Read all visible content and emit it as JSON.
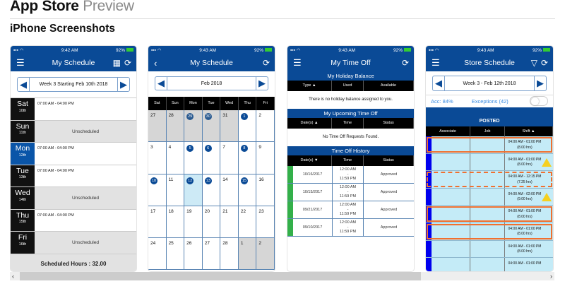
{
  "page": {
    "title": "App Store",
    "title_suffix": "Preview",
    "section": "iPhone Screenshots"
  },
  "colors": {
    "brand": "#0a4a96",
    "approved": "#33b04a",
    "warning": "#f5d020",
    "exception_outline": "#f07030"
  },
  "status_bar": {
    "battery": "92%"
  },
  "phone1": {
    "time": "9:42 AM",
    "title": "My Schedule",
    "week": "Week 3 Starting Feb 10th 2018",
    "icons": [
      "menu-icon",
      "calendar-icon",
      "refresh-icon",
      "arrow-left-icon",
      "arrow-right-icon"
    ],
    "days": [
      {
        "name": "Sat",
        "date": "10th",
        "shift": "07:00 AM - 04:00 PM"
      },
      {
        "name": "Sun",
        "date": "11th",
        "shift": "Unscheduled"
      },
      {
        "name": "Mon",
        "date": "12th",
        "shift": "07:00 AM - 04:00 PM",
        "today": true
      },
      {
        "name": "Tue",
        "date": "13th",
        "shift": "07:00 AM - 04:00 PM"
      },
      {
        "name": "Wed",
        "date": "14th",
        "shift": "Unscheduled"
      },
      {
        "name": "Thu",
        "date": "15th",
        "shift": "07:00 AM - 04:00 PM"
      },
      {
        "name": "Fri",
        "date": "16th",
        "shift": "Unscheduled"
      }
    ],
    "footer_label": "Scheduled Hours :",
    "footer_value": "32.00"
  },
  "phone2": {
    "time": "9:43 AM",
    "title": "My Schedule",
    "month": "Feb 2018",
    "weekdays": [
      "Sat",
      "Sun",
      "Mon",
      "Tue",
      "Wed",
      "Thu",
      "Fri"
    ],
    "cells": [
      {
        "d": "27",
        "g": 1
      },
      {
        "d": "28",
        "g": 1
      },
      {
        "d": "29",
        "g": 1,
        "s": 1
      },
      {
        "d": "30",
        "g": 1,
        "s": 1
      },
      {
        "d": "31",
        "g": 1
      },
      {
        "d": "1",
        "s": 1
      },
      {
        "d": "2"
      },
      {
        "d": "3"
      },
      {
        "d": "4"
      },
      {
        "d": "5",
        "s": 1
      },
      {
        "d": "6",
        "s": 1
      },
      {
        "d": "7"
      },
      {
        "d": "8",
        "s": 1
      },
      {
        "d": "9"
      },
      {
        "d": "10",
        "s": 1
      },
      {
        "d": "11"
      },
      {
        "d": "12",
        "s": 1,
        "sel": 1
      },
      {
        "d": "13",
        "s": 1
      },
      {
        "d": "14"
      },
      {
        "d": "15",
        "s": 1
      },
      {
        "d": "16"
      },
      {
        "d": "17"
      },
      {
        "d": "18"
      },
      {
        "d": "19"
      },
      {
        "d": "20"
      },
      {
        "d": "21"
      },
      {
        "d": "22"
      },
      {
        "d": "23"
      },
      {
        "d": "24"
      },
      {
        "d": "25"
      },
      {
        "d": "26"
      },
      {
        "d": "27"
      },
      {
        "d": "28"
      },
      {
        "d": "1",
        "g": 1
      },
      {
        "d": "2",
        "g": 1
      }
    ]
  },
  "phone3": {
    "time": "9:43 AM",
    "title": "My Time Off",
    "holiday": {
      "title": "My Holiday Balance",
      "cols": [
        "Type ▲",
        "Used",
        "Available"
      ],
      "empty": "There is no holiday balance assigned to you."
    },
    "upcoming": {
      "title": "My Upcoming Time Off",
      "cols": [
        "Date(s) ▲",
        "Time",
        "Status"
      ],
      "empty": "No Time Off Requests Found."
    },
    "history": {
      "title": "Time Off History",
      "cols": [
        "Date(s) ▼",
        "Time",
        "Status"
      ],
      "rows": [
        {
          "date": "10/16/2017",
          "time": "12:00 AM\n-\n11:59 PM",
          "status": "Approved"
        },
        {
          "date": "10/15/2017",
          "time": "12:00 AM\n-\n11:59 PM",
          "status": "Approved"
        },
        {
          "date": "09/21/2017",
          "time": "12:00 AM\n-\n11:59 PM",
          "status": "Approved"
        },
        {
          "date": "09/10/2017",
          "time": "12:00 AM\n-\n11:59 PM",
          "status": "Approved"
        }
      ]
    }
  },
  "phone4": {
    "time": "9:43 AM",
    "title": "Store Schedule",
    "week": "Week 3 - Feb 12th 2018",
    "accuracy": "Acc: 84%",
    "exceptions": "Exceptions (42)",
    "exceptions_toggle_on": false,
    "posted": "POSTED",
    "cols": [
      "Associate",
      "Job",
      "Shift ▲"
    ],
    "rows": [
      {
        "shift": "04:00 AM - 01:00 PM",
        "hours": "(8.00 hrs)",
        "outline": "solid"
      },
      {
        "shift": "04:00 AM - 01:00 PM",
        "hours": "(8.00 hrs)",
        "warning": true
      },
      {
        "shift": "04:00 AM - 12:15 PM",
        "hours": "(7.25 hrs)",
        "outline": "dashed"
      },
      {
        "shift": "04:00 AM - 02:00 PM",
        "hours": "(9.00 hrs)",
        "warning": true
      },
      {
        "shift": "04:00 AM - 01:00 PM",
        "hours": "(8.00 hrs)",
        "outline": "solid"
      },
      {
        "shift": "04:00 AM - 01:00 PM",
        "hours": "(8.00 hrs)",
        "outline": "solid"
      },
      {
        "shift": "04:00 AM - 01:00 PM",
        "hours": "(8.00 hrs)"
      },
      {
        "shift": "04:00 AM - 01:00 PM",
        "hours": ""
      }
    ]
  },
  "scrollbar": {
    "left": "‹",
    "right": "›",
    "position_percent": 0
  }
}
